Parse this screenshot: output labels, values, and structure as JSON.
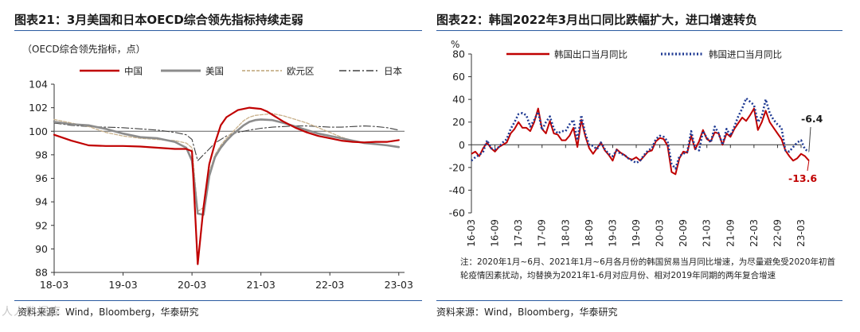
{
  "watermark": "人人数据库",
  "chart_data": [
    {
      "type": "line",
      "figure_label": "图表21：",
      "title": "3月美国和日本OECD综合领先指标持续走弱",
      "ylabel": "（OECD综合领先指标，点）",
      "ylim": [
        88,
        104
      ],
      "yticks": [
        88,
        90,
        92,
        94,
        96,
        98,
        100,
        102,
        104
      ],
      "xlim": [
        0,
        61
      ],
      "xticks": [
        {
          "x": 0,
          "label": "18-03"
        },
        {
          "x": 12,
          "label": "19-03"
        },
        {
          "x": 24,
          "label": "20-03"
        },
        {
          "x": 36,
          "label": "21-03"
        },
        {
          "x": 48,
          "label": "22-03"
        },
        {
          "x": 60,
          "label": "23-03"
        }
      ],
      "reference_line": 100,
      "colors": {
        "中国": "#c00000",
        "美国": "#8c8c8c",
        "欧元区": "#c8b08a",
        "日本": "#404040",
        "ref": "#606060"
      },
      "legend": [
        "中国",
        "美国",
        "欧元区",
        "日本"
      ],
      "series": [
        {
          "name": "中国",
          "x": [
            0,
            3,
            6,
            9,
            12,
            15,
            18,
            21,
            23,
            24,
            25,
            26,
            27,
            28,
            29,
            30,
            31,
            32,
            33,
            34,
            35,
            36,
            37,
            38,
            39,
            40,
            42,
            44,
            46,
            48,
            50,
            52,
            54,
            56,
            58,
            60
          ],
          "values": [
            99.7,
            99.2,
            98.8,
            98.75,
            98.75,
            98.7,
            98.6,
            98.5,
            98.5,
            98.3,
            88.7,
            93.5,
            97.2,
            99.0,
            100.5,
            101.2,
            101.5,
            101.8,
            101.9,
            102.0,
            101.95,
            101.9,
            101.7,
            101.4,
            101.1,
            100.8,
            100.3,
            99.9,
            99.6,
            99.4,
            99.2,
            99.1,
            99.05,
            99.1,
            99.1,
            99.25
          ]
        },
        {
          "name": "美国",
          "x": [
            0,
            3,
            6,
            9,
            12,
            15,
            18,
            21,
            23,
            24,
            25,
            26,
            27,
            28,
            29,
            30,
            31,
            32,
            33,
            34,
            35,
            36,
            38,
            40,
            42,
            44,
            46,
            48,
            50,
            52,
            54,
            56,
            58,
            60
          ],
          "values": [
            100.8,
            100.6,
            100.5,
            100.2,
            99.8,
            99.5,
            99.4,
            99.1,
            98.6,
            97.5,
            93.0,
            92.9,
            96.2,
            97.8,
            98.6,
            99.2,
            99.7,
            100.1,
            100.5,
            100.8,
            100.95,
            101.0,
            100.95,
            100.7,
            100.4,
            100.1,
            99.8,
            99.6,
            99.4,
            99.2,
            99.0,
            98.9,
            98.8,
            98.65
          ]
        },
        {
          "name": "欧元区",
          "x": [
            0,
            3,
            6,
            9,
            12,
            15,
            18,
            21,
            23,
            24,
            25,
            26,
            27,
            28,
            29,
            30,
            31,
            32,
            33,
            34,
            35,
            36,
            38,
            40,
            42,
            44,
            46,
            48,
            50,
            52,
            54,
            56,
            58,
            60
          ],
          "values": [
            101.0,
            100.7,
            100.4,
            99.9,
            99.6,
            99.4,
            99.3,
            99.2,
            99.0,
            98.6,
            93.2,
            93.5,
            96.5,
            98.0,
            98.8,
            99.4,
            99.9,
            100.4,
            100.9,
            101.2,
            101.35,
            101.4,
            101.5,
            101.3,
            101.0,
            100.7,
            100.3,
            99.9,
            99.5,
            99.2,
            99.0,
            98.9,
            98.8,
            98.7
          ]
        },
        {
          "name": "日本",
          "x": [
            0,
            3,
            6,
            9,
            12,
            15,
            18,
            21,
            23,
            24,
            25,
            26,
            27,
            28,
            30,
            32,
            34,
            36,
            38,
            40,
            42,
            44,
            46,
            48,
            50,
            52,
            54,
            56,
            58,
            60
          ],
          "values": [
            100.7,
            100.5,
            100.4,
            100.35,
            100.3,
            100.2,
            100.1,
            99.9,
            99.7,
            99.3,
            97.5,
            98.0,
            98.5,
            99.0,
            99.6,
            99.9,
            100.1,
            100.25,
            100.35,
            100.4,
            100.45,
            100.45,
            100.4,
            100.35,
            100.35,
            100.4,
            100.45,
            100.4,
            100.3,
            100.1
          ]
        }
      ],
      "source": "资料来源：Wind，Bloomberg，华泰研究"
    },
    {
      "type": "line",
      "figure_label": "图表22：",
      "title": "韩国2022年3月出口同比跌幅扩大，进口增速转负",
      "ylabel": "%",
      "ylim": [
        -60,
        80
      ],
      "yticks": [
        -60,
        -40,
        -20,
        0,
        20,
        40,
        60,
        80
      ],
      "xlim": [
        0,
        84
      ],
      "xticks": [
        {
          "x": 0,
          "label": "16-03"
        },
        {
          "x": 6,
          "label": "16-09"
        },
        {
          "x": 12,
          "label": "17-03"
        },
        {
          "x": 18,
          "label": "17-09"
        },
        {
          "x": 24,
          "label": "18-03"
        },
        {
          "x": 30,
          "label": "18-09"
        },
        {
          "x": 36,
          "label": "19-03"
        },
        {
          "x": 42,
          "label": "19-09"
        },
        {
          "x": 48,
          "label": "20-03"
        },
        {
          "x": 54,
          "label": "20-09"
        },
        {
          "x": 60,
          "label": "21-03"
        },
        {
          "x": 66,
          "label": "21-09"
        },
        {
          "x": 72,
          "label": "22-03"
        },
        {
          "x": 78,
          "label": "22-09"
        },
        {
          "x": 84,
          "label": "23-03"
        }
      ],
      "colors": {
        "韩国出口当月同比": "#c00000",
        "韩国进口当月同比": "#1f3a93"
      },
      "legend": [
        "韩国出口当月同比",
        "韩国进口当月同比"
      ],
      "series": [
        {
          "name": "韩国出口当月同比",
          "x_start": 0,
          "values": [
            -8,
            -6,
            -10,
            -3,
            2,
            -3,
            -6,
            -2,
            0,
            2,
            10,
            14,
            20,
            15,
            15,
            12,
            20,
            32,
            14,
            10,
            21,
            10,
            9,
            4,
            4,
            8,
            15,
            -2,
            22,
            8,
            -3,
            -8,
            -3,
            2,
            -5,
            -9,
            -14,
            -4,
            -7,
            -9,
            -12,
            -13,
            -11,
            -14,
            -10,
            -6,
            -5,
            3,
            6,
            5,
            -1,
            -24,
            -26,
            -12,
            -6,
            -7,
            8,
            -4,
            3,
            13,
            5,
            3,
            11,
            10,
            0,
            10,
            7,
            14,
            19,
            24,
            21,
            26,
            32,
            13,
            20,
            30,
            20,
            15,
            10,
            5,
            -5,
            -10,
            -14,
            -12,
            -8,
            -10,
            -14
          ]
        },
        {
          "name": "韩国进口当月同比",
          "x_start": 0,
          "values": [
            -14,
            -11,
            -9,
            -6,
            4,
            -3,
            -4,
            -2,
            2,
            5,
            14,
            20,
            27,
            28,
            26,
            16,
            22,
            29,
            13,
            20,
            25,
            14,
            10,
            12,
            12,
            18,
            22,
            4,
            26,
            10,
            0,
            -1,
            -4,
            2,
            -4,
            -8,
            -10,
            -5,
            -8,
            -9,
            -12,
            -14,
            -16,
            -14,
            -9,
            -5,
            -3,
            5,
            8,
            7,
            3,
            -17,
            -21,
            -10,
            -8,
            -6,
            12,
            -3,
            -5,
            12,
            6,
            2,
            16,
            10,
            0,
            14,
            8,
            16,
            25,
            32,
            41,
            38,
            35,
            20,
            25,
            40,
            28,
            22,
            18,
            15,
            -5,
            -6,
            -2,
            2,
            4,
            -4,
            -6
          ]
        }
      ],
      "annotations": [
        {
          "label": "-6.4",
          "value": -6.4,
          "color": "#1a1a1a"
        },
        {
          "label": "-13.6",
          "value": -13.6,
          "color": "#c00000"
        }
      ],
      "note": "注：2020年1月~6月、2021年1月~6月各月份的韩国贸易当月同比增速，为尽量避免受2020年初首轮疫情因素扰动，均替换为2021年1-6月对应月份、相对2019年同期的两年复合增速",
      "source": "资料来源：Wind，Bloomberg，华泰研究"
    }
  ]
}
